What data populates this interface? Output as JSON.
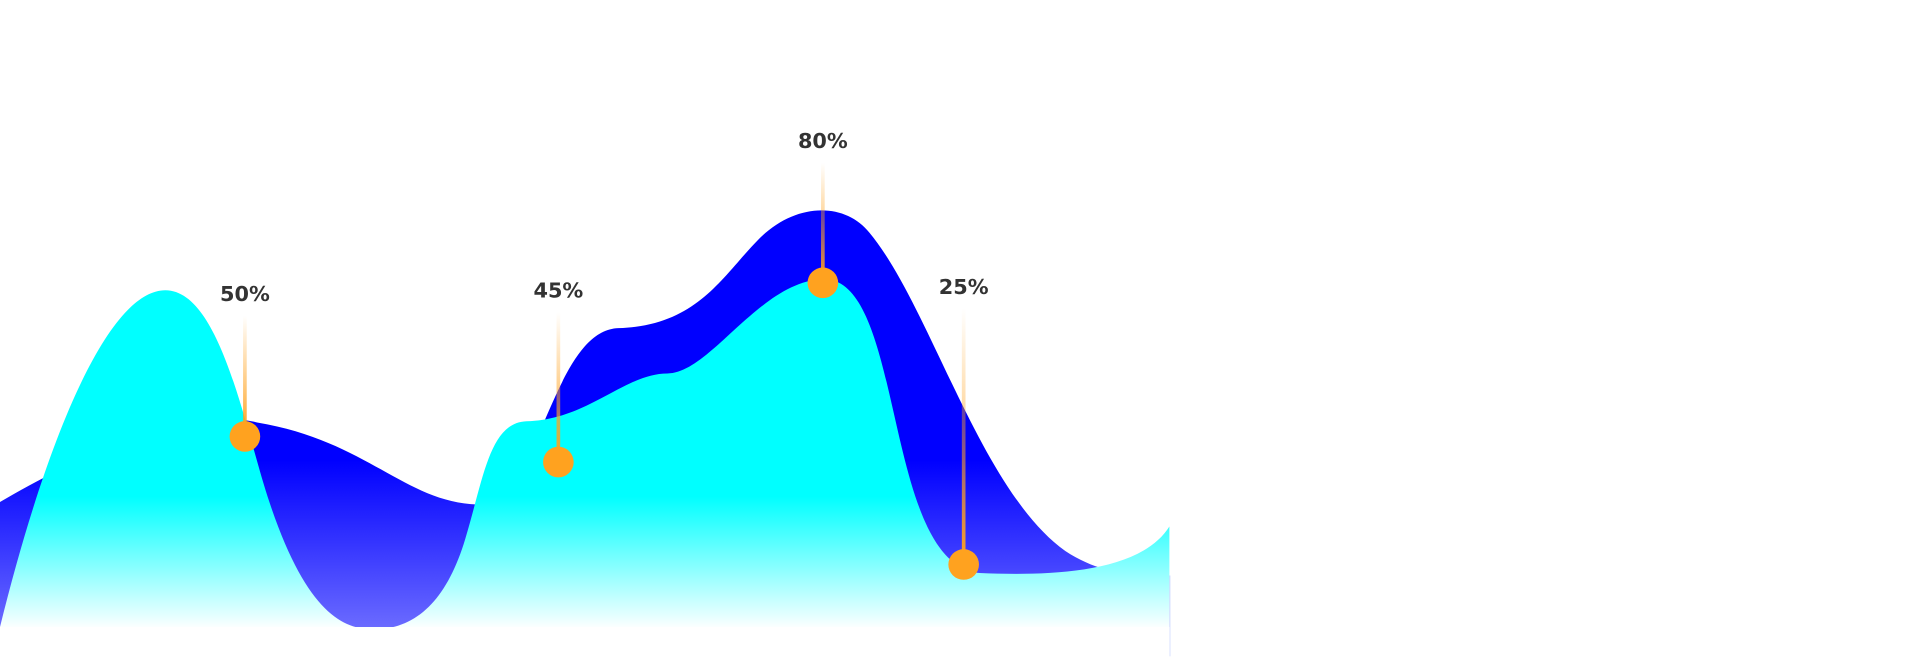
{
  "chart_data": {
    "type": "point",
    "values": [
      50,
      45,
      80,
      25
    ],
    "value_labels": [
      "50%",
      "45%",
      "80%",
      "25%"
    ],
    "color": "#ffa21f"
  }
}
